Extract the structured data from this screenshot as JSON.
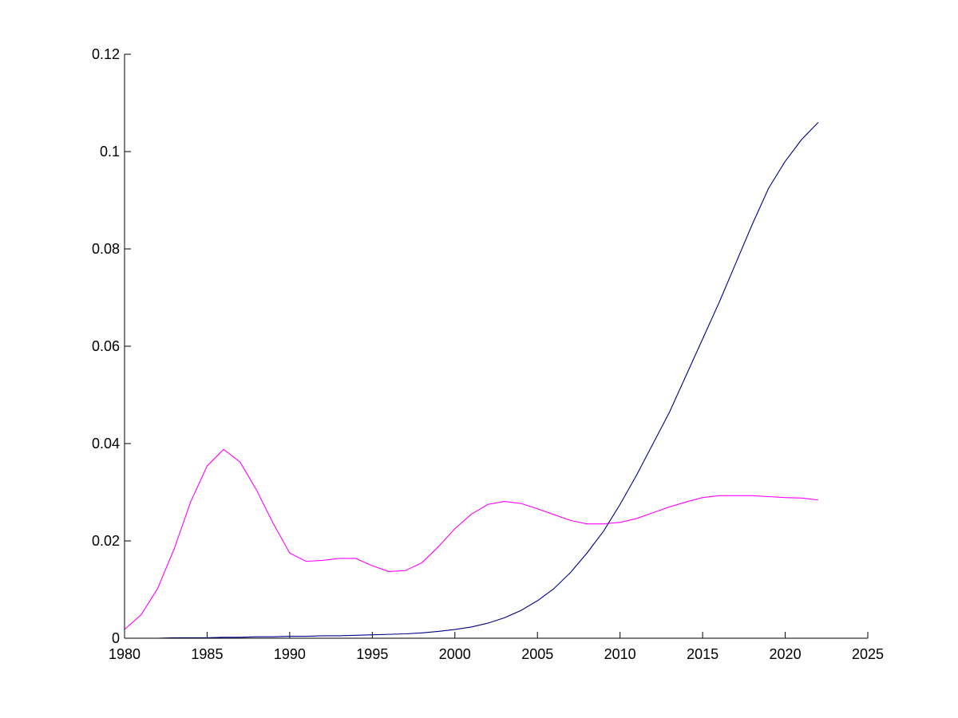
{
  "chart_data": {
    "type": "line",
    "title": "",
    "xlabel": "",
    "ylabel": "",
    "xlim": [
      1980,
      2025
    ],
    "ylim": [
      0,
      0.12
    ],
    "x_ticks": [
      1980,
      1985,
      1990,
      1995,
      2000,
      2005,
      2010,
      2015,
      2020,
      2025
    ],
    "y_ticks": [
      0,
      0.02,
      0.04,
      0.06,
      0.08,
      0.1,
      0.12
    ],
    "x_tick_labels": [
      "1980",
      "1985",
      "1990",
      "1995",
      "2000",
      "2005",
      "2010",
      "2015",
      "2020",
      "2025"
    ],
    "y_tick_labels": [
      "0",
      "0.02",
      "0.04",
      "0.06",
      "0.08",
      "0.1",
      "0.12"
    ],
    "grid": false,
    "legend": "none",
    "series": [
      {
        "color": "#ff00ff",
        "x": [
          1980,
          1981,
          1982,
          1983,
          1984,
          1985,
          1986,
          1987,
          1988,
          1989,
          1990,
          1991,
          1992,
          1993,
          1994,
          1995,
          1996,
          1997,
          1998,
          1999,
          2000,
          2001,
          2002,
          2003,
          2004,
          2005,
          2006,
          2007,
          2008,
          2009,
          2010,
          2011,
          2012,
          2013,
          2014,
          2015,
          2016,
          2017,
          2018,
          2019,
          2020,
          2021,
          2022
        ],
        "values": [
          0.0018,
          0.0048,
          0.0102,
          0.0183,
          0.028,
          0.0354,
          0.0388,
          0.0362,
          0.0304,
          0.0236,
          0.0175,
          0.0158,
          0.016,
          0.0164,
          0.0164,
          0.0149,
          0.0137,
          0.0139,
          0.0155,
          0.0188,
          0.0225,
          0.0255,
          0.0275,
          0.0281,
          0.0277,
          0.0266,
          0.0254,
          0.0242,
          0.0235,
          0.0235,
          0.0238,
          0.0246,
          0.0258,
          0.027,
          0.028,
          0.0289,
          0.0293,
          0.0293,
          0.0293,
          0.0291,
          0.0289,
          0.0288,
          0.0284
        ]
      },
      {
        "color": "#00008b",
        "x": [
          1980,
          1981,
          1982,
          1983,
          1984,
          1985,
          1986,
          1987,
          1988,
          1989,
          1990,
          1991,
          1992,
          1993,
          1994,
          1995,
          1996,
          1997,
          1998,
          1999,
          2000,
          2001,
          2002,
          2003,
          2004,
          2005,
          2006,
          2007,
          2008,
          2009,
          2010,
          2011,
          2012,
          2013,
          2014,
          2015,
          2016,
          2017,
          2018,
          2019,
          2020,
          2021,
          2022
        ],
        "values": [
          0.0,
          0.0,
          0.0,
          0.0001,
          0.0001,
          0.0001,
          0.0002,
          0.0002,
          0.0003,
          0.0003,
          0.0004,
          0.0004,
          0.0005,
          0.0005,
          0.0006,
          0.0007,
          0.0008,
          0.0009,
          0.0011,
          0.0014,
          0.0018,
          0.0023,
          0.0031,
          0.0042,
          0.0057,
          0.0077,
          0.0102,
          0.0135,
          0.0175,
          0.022,
          0.0275,
          0.0335,
          0.04,
          0.0465,
          0.054,
          0.0615,
          0.069,
          0.077,
          0.085,
          0.0925,
          0.098,
          0.1025,
          0.106
        ]
      }
    ]
  }
}
